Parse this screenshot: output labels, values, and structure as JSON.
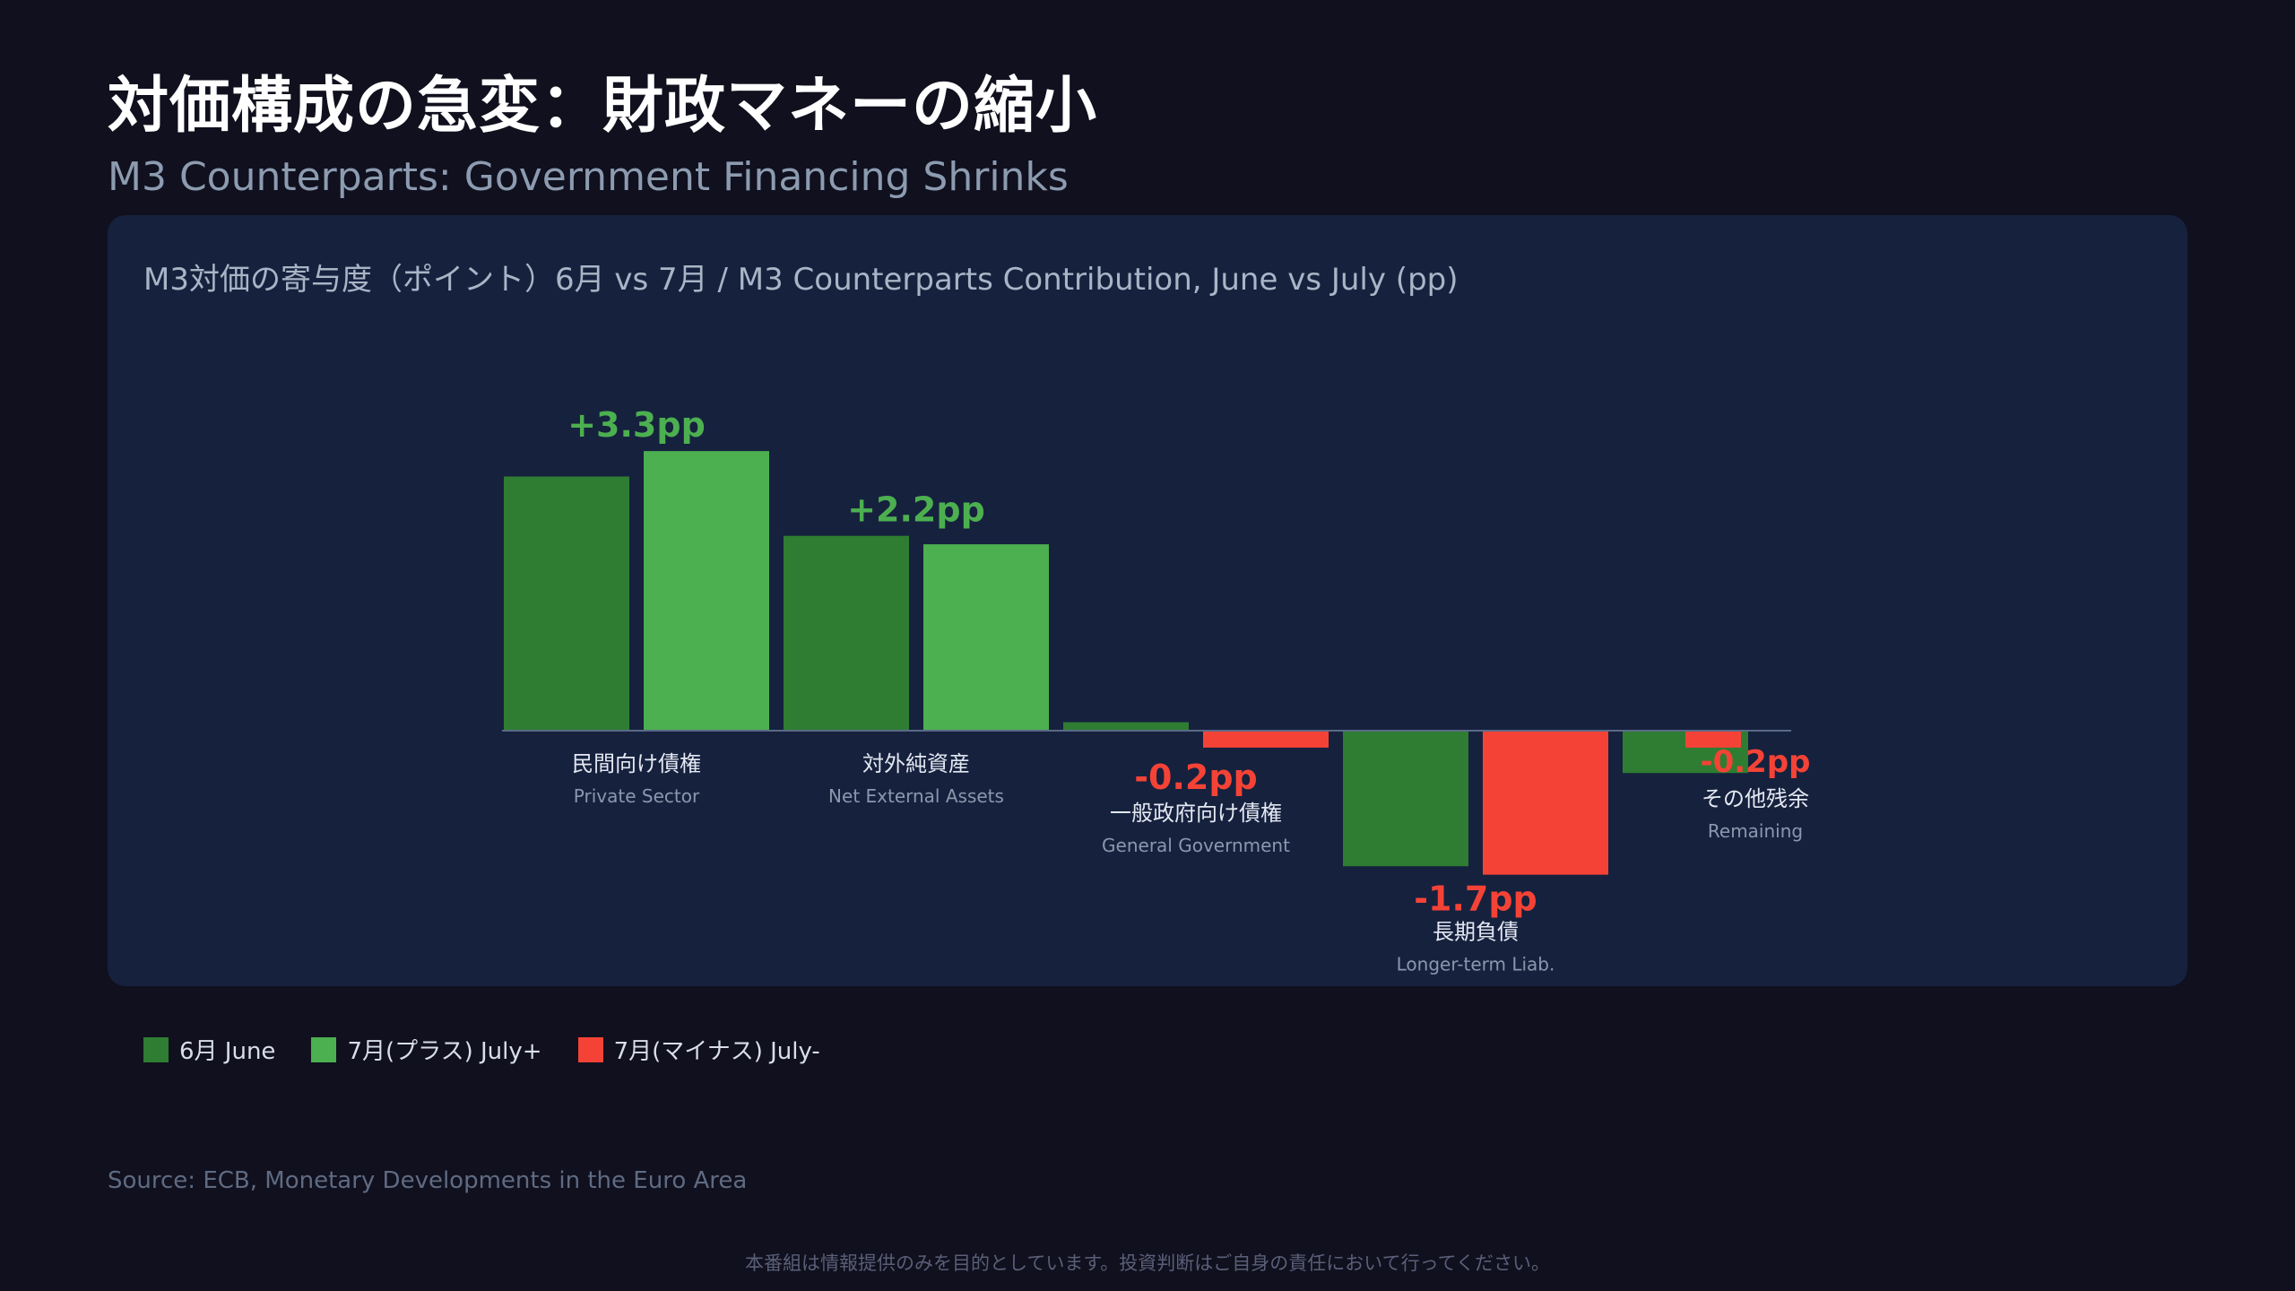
{
  "title": "対価構成の急変：財政マネーの縮小",
  "subtitle": "M3 Counterparts: Government Financing Shrinks",
  "panel_title": "M3対価の寄与度（ポイント）6月 vs 7月 / M3 Counterparts Contribution, June vs July (pp)",
  "colors": {
    "june": "#2e7d32",
    "july_plus": "#4caf50",
    "july_minus": "#f44336",
    "positive_label": "#4caf50",
    "negative_label": "#f44336"
  },
  "legend": {
    "june": "6月 June",
    "july_plus": "7月(プラス) July+",
    "july_minus": "7月(マイナス) July-"
  },
  "chart_data": {
    "type": "bar",
    "ylabel": "pp",
    "ylim": [
      -2.0,
      4.0
    ],
    "categories": [
      {
        "ja": "民間向け債権",
        "en": "Private Sector",
        "change_label": "+3.3pp"
      },
      {
        "ja": "対外純資産",
        "en": "Net External Assets",
        "change_label": "+2.2pp"
      },
      {
        "ja": "一般政府向け債権",
        "en": "General Government",
        "change_label": "-0.2pp"
      },
      {
        "ja": "長期負債",
        "en": "Longer-term Liab.",
        "change_label": "-1.7pp"
      },
      {
        "ja": "その他残余",
        "en": "Remaining",
        "change_label": "-0.2pp"
      }
    ],
    "series": [
      {
        "name": "6月 June",
        "values": [
          3.0,
          2.3,
          0.1,
          -1.6,
          -0.5
        ]
      },
      {
        "name": "7月 July",
        "values": [
          3.3,
          2.2,
          -0.2,
          -1.7,
          -0.2
        ]
      }
    ]
  },
  "source": "Source: ECB, Monetary Developments in the Euro Area",
  "disclaimer": "本番組は情報提供のみを目的としています。投資判断はご自身の責任において行ってください。"
}
